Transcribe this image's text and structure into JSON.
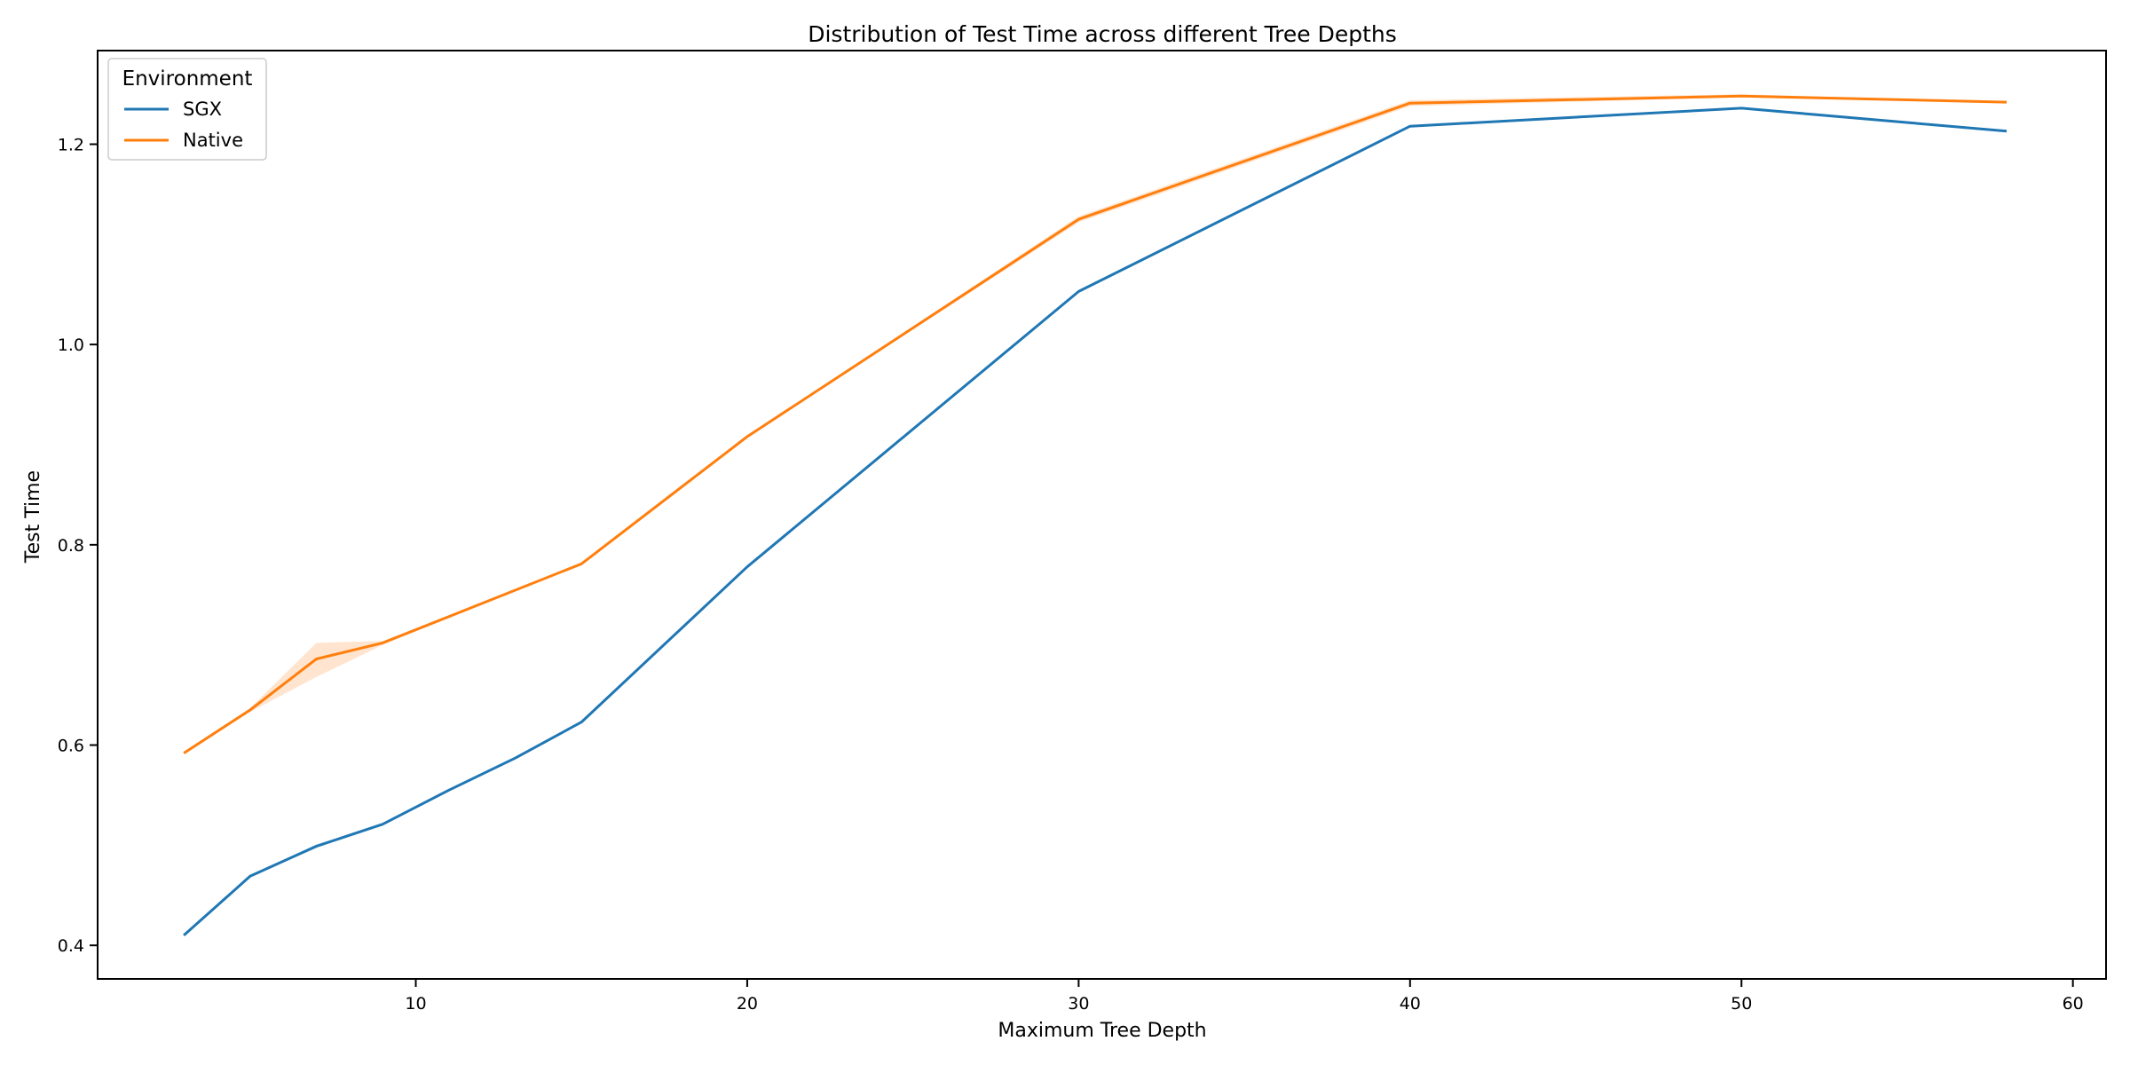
{
  "chart_data": {
    "type": "line",
    "title": "Distribution of Test Time  across different Tree Depths",
    "xlabel": "Maximum Tree Depth",
    "ylabel": "Test Time",
    "xlim": [
      0.4,
      61.0
    ],
    "ylim": [
      0.3665,
      1.2935
    ],
    "xticks": [
      10,
      20,
      30,
      40,
      50,
      60
    ],
    "yticks": [
      0.4,
      0.6,
      0.8,
      1.0,
      1.2
    ],
    "grid": false,
    "legend": {
      "title": "Environment",
      "placement": "top-left"
    },
    "series": [
      {
        "name": "SGX",
        "color": "#1f77b4",
        "x": [
          3,
          5,
          7,
          9,
          11,
          13,
          15,
          20,
          30,
          40,
          50,
          58
        ],
        "y": [
          0.41,
          0.469,
          0.499,
          0.521,
          0.555,
          0.587,
          0.623,
          0.778,
          1.053,
          1.218,
          1.236,
          1.213
        ],
        "ci_low": [
          0.41,
          0.469,
          0.497,
          0.521,
          0.555,
          0.587,
          0.623,
          0.778,
          1.053,
          1.218,
          1.236,
          1.213
        ],
        "ci_high": [
          0.41,
          0.469,
          0.501,
          0.521,
          0.555,
          0.587,
          0.623,
          0.778,
          1.053,
          1.218,
          1.236,
          1.213
        ]
      },
      {
        "name": "Native",
        "color": "#ff7f0e",
        "x": [
          3,
          5,
          7,
          9,
          15,
          20,
          30,
          40,
          50,
          58
        ],
        "y": [
          0.592,
          0.635,
          0.686,
          0.702,
          0.781,
          0.908,
          1.125,
          1.241,
          1.248,
          1.242
        ],
        "ci_low": [
          0.592,
          0.633,
          0.668,
          0.7,
          0.781,
          0.908,
          1.122,
          1.238,
          1.247,
          1.242
        ],
        "ci_high": [
          0.592,
          0.637,
          0.702,
          0.704,
          0.781,
          0.908,
          1.128,
          1.244,
          1.25,
          1.242
        ]
      }
    ]
  }
}
